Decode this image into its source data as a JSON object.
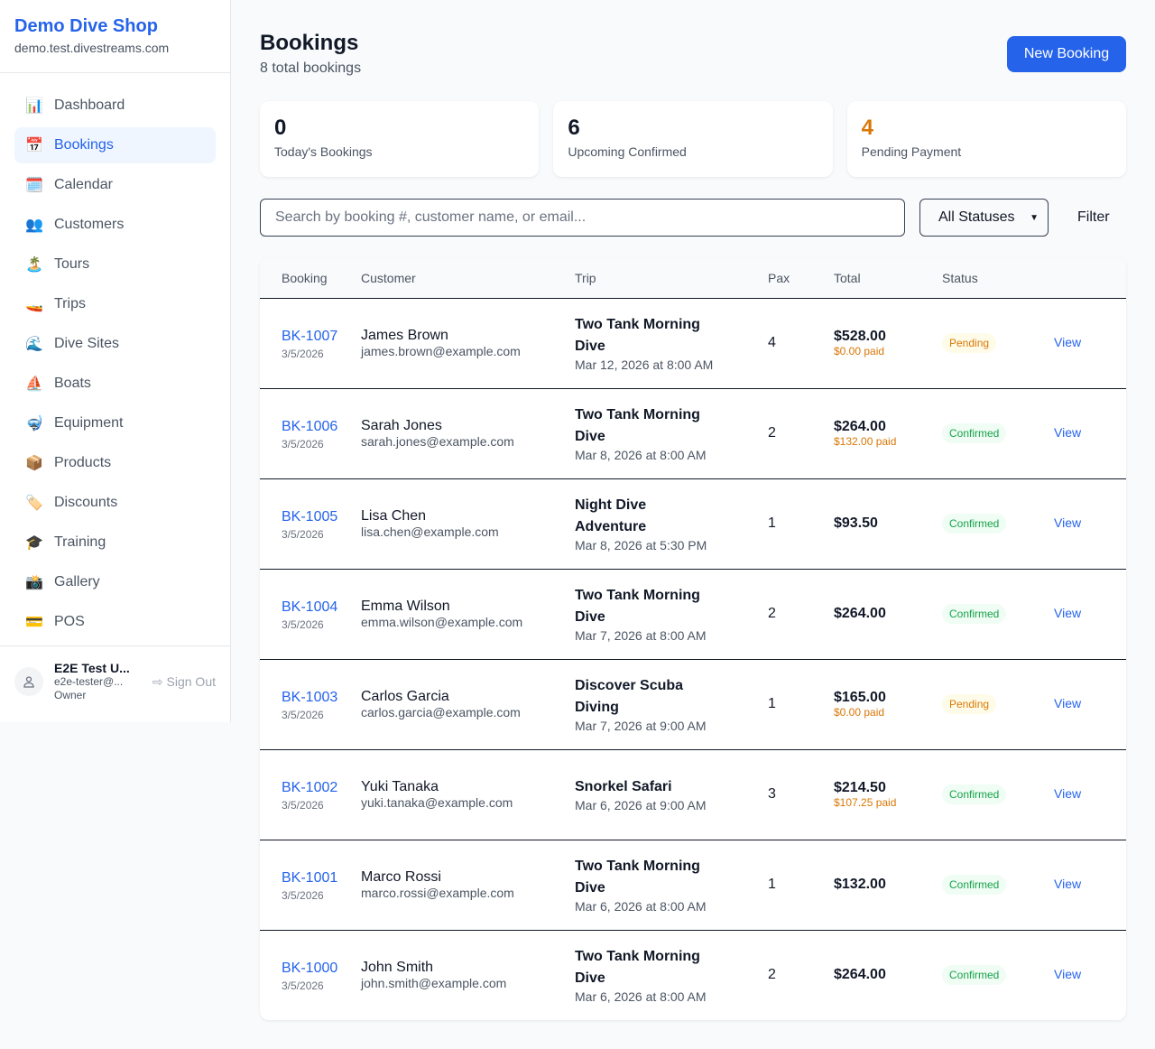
{
  "sidebar": {
    "brand": "Demo Dive Shop",
    "domain": "demo.test.divestreams.com",
    "items": [
      {
        "label": "Dashboard",
        "icon": "📊",
        "active": false
      },
      {
        "label": "Bookings",
        "icon": "📅",
        "active": true
      },
      {
        "label": "Calendar",
        "icon": "🗓️",
        "active": false
      },
      {
        "label": "Customers",
        "icon": "👥",
        "active": false
      },
      {
        "label": "Tours",
        "icon": "🏝️",
        "active": false
      },
      {
        "label": "Trips",
        "icon": "🚤",
        "active": false
      },
      {
        "label": "Dive Sites",
        "icon": "🌊",
        "active": false
      },
      {
        "label": "Boats",
        "icon": "⛵",
        "active": false
      },
      {
        "label": "Equipment",
        "icon": "🤿",
        "active": false
      },
      {
        "label": "Products",
        "icon": "📦",
        "active": false
      },
      {
        "label": "Discounts",
        "icon": "🏷️",
        "active": false
      },
      {
        "label": "Training",
        "icon": "🎓",
        "active": false
      },
      {
        "label": "Gallery",
        "icon": "📸",
        "active": false
      },
      {
        "label": "POS",
        "icon": "💳",
        "active": false
      }
    ],
    "user": {
      "name": "E2E Test U...",
      "email": "e2e-tester@...",
      "role": "Owner",
      "sign_out": "Sign Out"
    }
  },
  "header": {
    "title": "Bookings",
    "subtitle": "8 total bookings",
    "new_button": "New Booking"
  },
  "stats": [
    {
      "value": "0",
      "label": "Today's Bookings",
      "color": "#111827"
    },
    {
      "value": "6",
      "label": "Upcoming Confirmed",
      "color": "#111827"
    },
    {
      "value": "4",
      "label": "Pending Payment",
      "color": "#d97706"
    }
  ],
  "filters": {
    "search_placeholder": "Search by booking #, customer name, or email...",
    "search_value": "",
    "status": "All Statuses",
    "filter_label": "Filter"
  },
  "table": {
    "headers": [
      "Booking",
      "Customer",
      "Trip",
      "Pax",
      "Total",
      "Status",
      ""
    ],
    "rows": [
      {
        "id": "BK-1007",
        "date": "3/5/2026",
        "customer": "James Brown",
        "email": "james.brown@example.com",
        "trip": "Two Tank Morning Dive",
        "trip_date": "Mar 12, 2026 at 8:00 AM",
        "pax": "4",
        "total": "$528.00",
        "paid": "$0.00 paid",
        "status": "Pending",
        "action": "View"
      },
      {
        "id": "BK-1006",
        "date": "3/5/2026",
        "customer": "Sarah Jones",
        "email": "sarah.jones@example.com",
        "trip": "Two Tank Morning Dive",
        "trip_date": "Mar 8, 2026 at 8:00 AM",
        "pax": "2",
        "total": "$264.00",
        "paid": "$132.00 paid",
        "status": "Confirmed",
        "action": "View"
      },
      {
        "id": "BK-1005",
        "date": "3/5/2026",
        "customer": "Lisa Chen",
        "email": "lisa.chen@example.com",
        "trip": "Night Dive Adventure",
        "trip_date": "Mar 8, 2026 at 5:30 PM",
        "pax": "1",
        "total": "$93.50",
        "paid": "",
        "status": "Confirmed",
        "action": "View"
      },
      {
        "id": "BK-1004",
        "date": "3/5/2026",
        "customer": "Emma Wilson",
        "email": "emma.wilson@example.com",
        "trip": "Two Tank Morning Dive",
        "trip_date": "Mar 7, 2026 at 8:00 AM",
        "pax": "2",
        "total": "$264.00",
        "paid": "",
        "status": "Confirmed",
        "action": "View"
      },
      {
        "id": "BK-1003",
        "date": "3/5/2026",
        "customer": "Carlos Garcia",
        "email": "carlos.garcia@example.com",
        "trip": "Discover Scuba Diving",
        "trip_date": "Mar 7, 2026 at 9:00 AM",
        "pax": "1",
        "total": "$165.00",
        "paid": "$0.00 paid",
        "status": "Pending",
        "action": "View"
      },
      {
        "id": "BK-1002",
        "date": "3/5/2026",
        "customer": "Yuki Tanaka",
        "email": "yuki.tanaka@example.com",
        "trip": "Snorkel Safari",
        "trip_date": "Mar 6, 2026 at 9:00 AM",
        "pax": "3",
        "total": "$214.50",
        "paid": "$107.25 paid",
        "status": "Confirmed",
        "action": "View"
      },
      {
        "id": "BK-1001",
        "date": "3/5/2026",
        "customer": "Marco Rossi",
        "email": "marco.rossi@example.com",
        "trip": "Two Tank Morning Dive",
        "trip_date": "Mar 6, 2026 at 8:00 AM",
        "pax": "1",
        "total": "$132.00",
        "paid": "",
        "status": "Confirmed",
        "action": "View"
      },
      {
        "id": "BK-1000",
        "date": "3/5/2026",
        "customer": "John Smith",
        "email": "john.smith@example.com",
        "trip": "Two Tank Morning Dive",
        "trip_date": "Mar 6, 2026 at 8:00 AM",
        "pax": "2",
        "total": "$264.00",
        "paid": "",
        "status": "Confirmed",
        "action": "View"
      }
    ]
  },
  "colors": {
    "primary": "#2563eb",
    "pending_bg": "#fefce8",
    "pending_text": "#d97706",
    "confirmed_bg": "#f0fdf4",
    "confirmed_text": "#16a34a"
  }
}
